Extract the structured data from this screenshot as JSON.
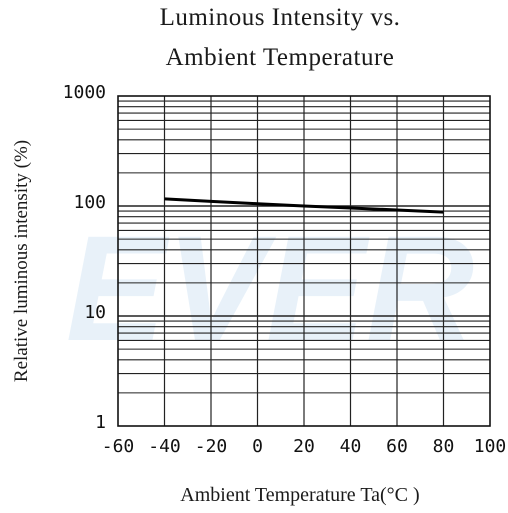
{
  "chart_data": {
    "type": "line",
    "title_line1": "Luminous Intensity vs.",
    "title_line2": "Ambient Temperature",
    "xlabel": "Ambient Temperature Ta(°C )",
    "ylabel": "Relative luminous intensity (%)",
    "x_ticks": [
      "-60",
      "-40",
      "-20",
      "0",
      "20",
      "40",
      "60",
      "80",
      "100"
    ],
    "y_ticks": [
      "1",
      "10",
      "100",
      "1000"
    ],
    "xlim": [
      -60,
      100
    ],
    "ylim": [
      1,
      1000
    ],
    "y_scale": "log",
    "grid": true,
    "series": [
      {
        "x": [
          -40,
          -20,
          0,
          20,
          40,
          60,
          80
        ],
        "y": [
          116,
          110,
          105,
          100,
          96,
          92,
          88
        ]
      }
    ],
    "watermark": "EVER"
  }
}
